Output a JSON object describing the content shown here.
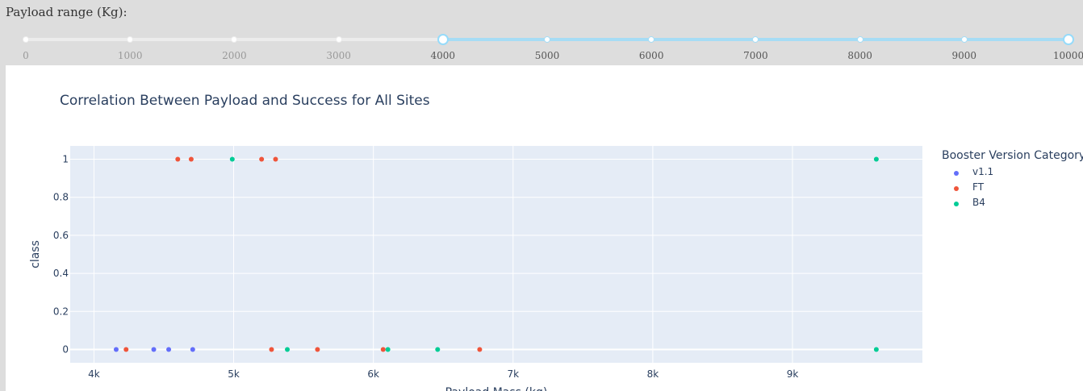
{
  "slider": {
    "label": "Payload range (Kg):",
    "min": 0,
    "max": 10000,
    "value": [
      4000,
      10000
    ],
    "marks": [
      "0",
      "1000",
      "2000",
      "3000",
      "4000",
      "5000",
      "6000",
      "7000",
      "8000",
      "9000",
      "10000"
    ],
    "colors": {
      "active": "#a6dcf5",
      "inactive": "#ececec",
      "handle_border": "#96dbfa",
      "mark_active": "#555555",
      "mark_inactive": "#999999"
    }
  },
  "chart_data": {
    "type": "scatter",
    "title": "Correlation Between Payload and Success for All Sites",
    "xlabel": "Payload Mass (kg)",
    "ylabel": "class",
    "xlim": [
      3830,
      9930
    ],
    "ylim": [
      -0.07,
      1.07
    ],
    "x_ticks": [
      4000,
      5000,
      6000,
      7000,
      8000,
      9000
    ],
    "x_tick_labels": [
      "4k",
      "5k",
      "6k",
      "7k",
      "8k",
      "9k"
    ],
    "y_ticks": [
      0,
      0.2,
      0.4,
      0.6,
      0.8,
      1
    ],
    "y_tick_labels": [
      "0",
      "0.2",
      "0.4",
      "0.6",
      "0.8",
      "1"
    ],
    "legend_title": "Booster Version Category",
    "legend_position": "right",
    "grid": true,
    "series": [
      {
        "name": "v1.1",
        "color": "#636efa",
        "points": [
          [
            4159,
            0
          ],
          [
            4428,
            0
          ],
          [
            4535,
            0
          ],
          [
            4707,
            0
          ]
        ]
      },
      {
        "name": "FT",
        "color": "#ef553b",
        "points": [
          [
            4600,
            1
          ],
          [
            4696,
            1
          ],
          [
            5200,
            1
          ],
          [
            5300,
            1
          ],
          [
            4230,
            0
          ],
          [
            5271,
            0
          ],
          [
            5600,
            0
          ],
          [
            6070,
            0
          ],
          [
            6761,
            0
          ]
        ]
      },
      {
        "name": "B4",
        "color": "#00cc96",
        "points": [
          [
            4990,
            1
          ],
          [
            9600,
            1
          ],
          [
            5384,
            0
          ],
          [
            6104,
            0
          ],
          [
            6460,
            0
          ],
          [
            9600,
            0
          ]
        ]
      }
    ]
  }
}
